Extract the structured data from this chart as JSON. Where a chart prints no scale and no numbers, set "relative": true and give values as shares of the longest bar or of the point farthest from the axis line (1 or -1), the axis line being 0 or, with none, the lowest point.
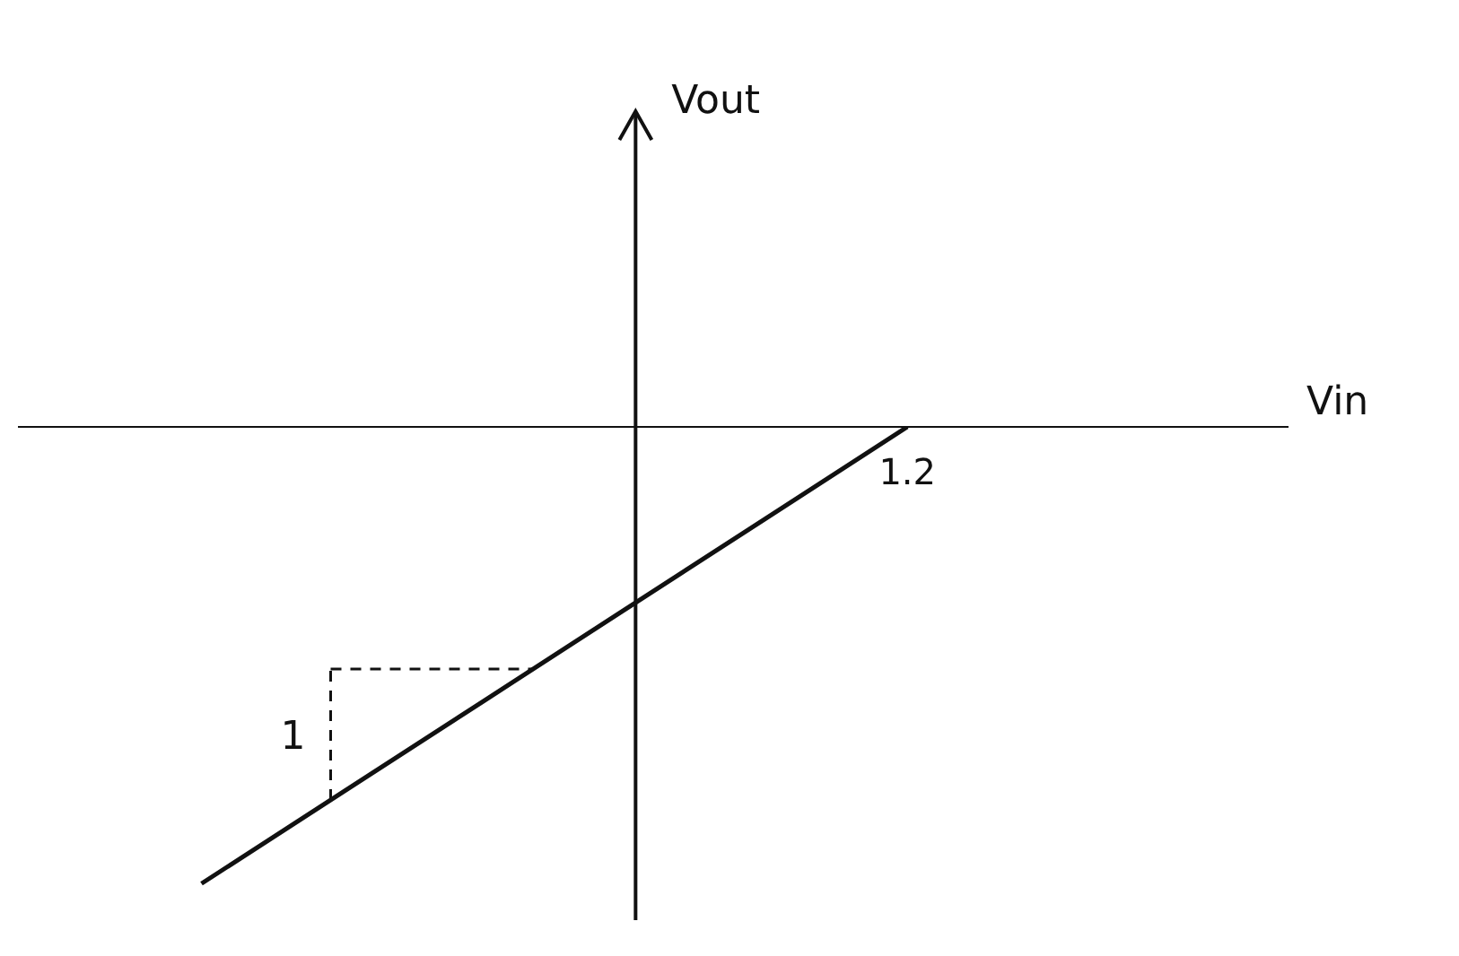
{
  "chart_data": {
    "type": "line",
    "relative": true,
    "categories": [
      null,
      null,
      null,
      null,
      null,
      null
    ],
    "series": [
      {
        "color": "#111111",
        "values": [
          -1,
          -0.8,
          -0.6,
          -0.4,
          -0.2,
          0
        ]
      }
    ],
    "annotations": [
      "1.2",
      "1",
      "Vin",
      "Vout"
    ],
    "marker": "none"
  }
}
